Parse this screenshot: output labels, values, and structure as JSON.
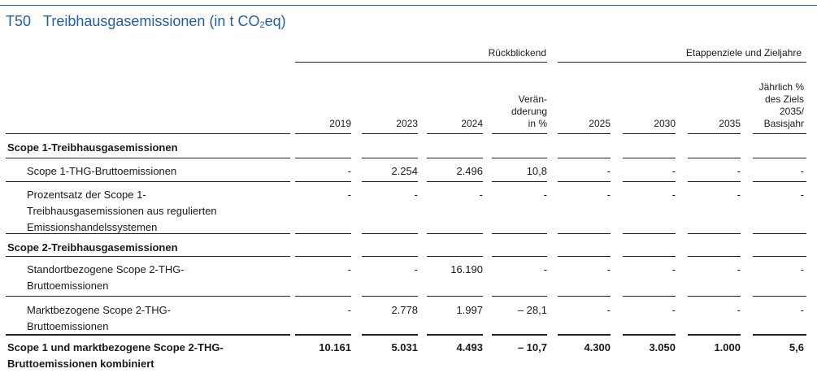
{
  "title": {
    "code": "T50",
    "text_main": "Treibhausgasemissionen (in t CO",
    "text_sub": "2",
    "text_end": "eq)"
  },
  "groups": {
    "retro": "Rückblickend",
    "targets": "Etappenziele und Zieljahre"
  },
  "columns": [
    {
      "key": "y2019",
      "label": "2019"
    },
    {
      "key": "y2023",
      "label": "2023"
    },
    {
      "key": "y2024",
      "label": "2024"
    },
    {
      "key": "chg",
      "label": "Verän-\ndderung\nin %"
    },
    {
      "key": "y2025",
      "label": "2025"
    },
    {
      "key": "y2030",
      "label": "2030"
    },
    {
      "key": "y2035",
      "label": "2035"
    },
    {
      "key": "annual",
      "label": "Jährlich %\ndes Ziels\n2035/\nBasisjahr"
    }
  ],
  "rows": [
    {
      "label": "Scope 1-Treibhausgasemissionen",
      "bold": true,
      "section": true,
      "values": []
    },
    {
      "label": "Scope 1-THG-Bruttoemissionen",
      "values": [
        "-",
        "2.254",
        "2.496",
        "10,8",
        "-",
        "-",
        "-",
        "-"
      ]
    },
    {
      "label": "Prozentsatz der Scope 1-\nTreibhausgasemissionen aus regulierten\nEmissionshandelssystemen",
      "values": [
        "-",
        "-",
        "-",
        "-",
        "-",
        "-",
        "-",
        "-"
      ]
    },
    {
      "label": "Scope 2-Treibhausgasemissionen",
      "bold": true,
      "section": true,
      "values": []
    },
    {
      "label": "Standortbezogene Scope 2-THG-\nBruttoemissionen",
      "values": [
        "-",
        "-",
        "16.190",
        "-",
        "-",
        "-",
        "-",
        "-"
      ]
    },
    {
      "label": "Marktbezogene Scope 2-THG-\nBruttoemissionen",
      "values": [
        "-",
        "2.778",
        "1.997",
        "– 28,1",
        "-",
        "-",
        "-",
        "-"
      ]
    },
    {
      "label": "Scope 1 und marktbezogene Scope 2-THG-\nBruttoemissionen kombiniert",
      "bold": true,
      "values": [
        "10.161",
        "5.031",
        "4.493",
        "– 10,7",
        "4.300",
        "3.050",
        "1.000",
        "5,6"
      ]
    }
  ]
}
